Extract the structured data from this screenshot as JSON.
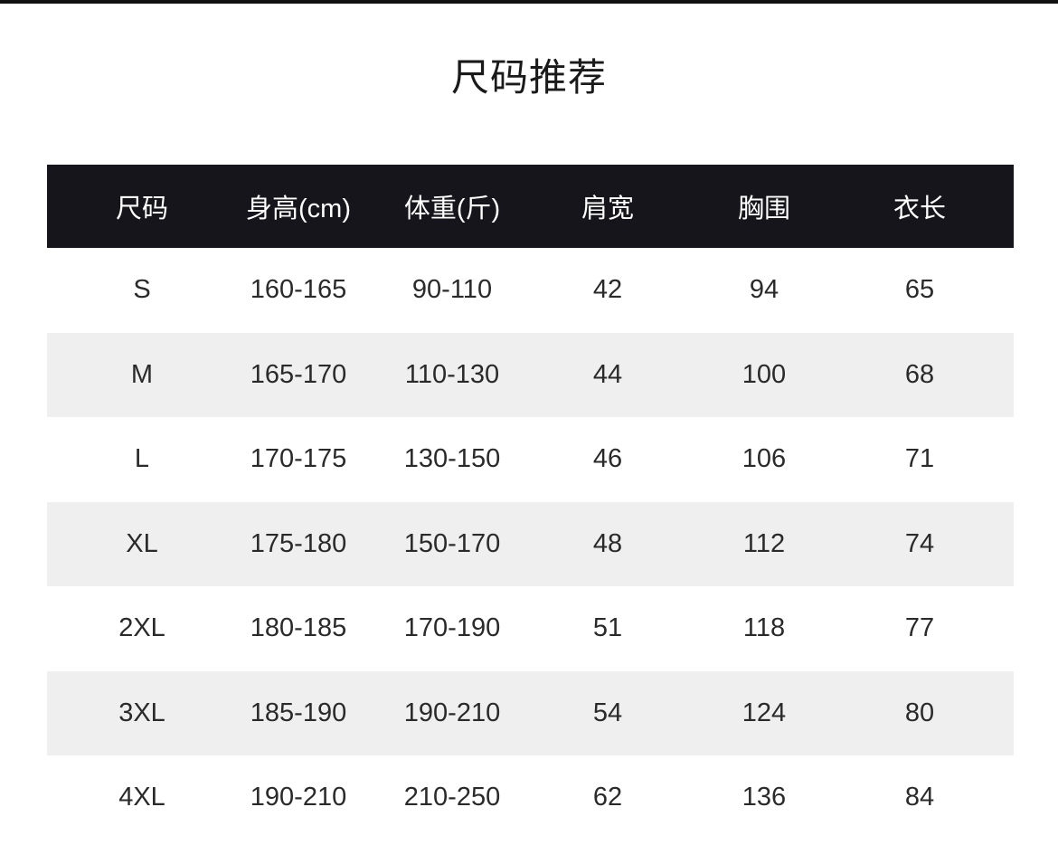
{
  "title": "尺码推荐",
  "colors": {
    "header_bg": "#15151b",
    "stripe_bg": "#efefef"
  },
  "table": {
    "headers": [
      "尺码",
      "身高(cm)",
      "体重(斤)",
      "肩宽",
      "胸围",
      "衣长"
    ],
    "rows": [
      [
        "S",
        "160-165",
        "90-110",
        "42",
        "94",
        "65"
      ],
      [
        "M",
        "165-170",
        "110-130",
        "44",
        "100",
        "68"
      ],
      [
        "L",
        "170-175",
        "130-150",
        "46",
        "106",
        "71"
      ],
      [
        "XL",
        "175-180",
        "150-170",
        "48",
        "112",
        "74"
      ],
      [
        "2XL",
        "180-185",
        "170-190",
        "51",
        "118",
        "77"
      ],
      [
        "3XL",
        "185-190",
        "190-210",
        "54",
        "124",
        "80"
      ],
      [
        "4XL",
        "190-210",
        "210-250",
        "62",
        "136",
        "84"
      ]
    ]
  }
}
